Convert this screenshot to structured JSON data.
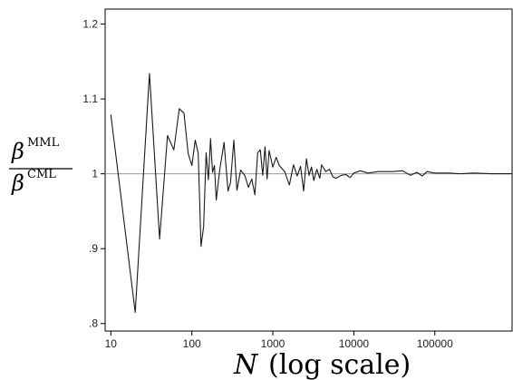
{
  "chart_data": {
    "type": "line",
    "title": "",
    "xlabel": {
      "var": "N",
      "suffix": "(log scale)"
    },
    "ylabel": {
      "numerator": {
        "base": "β",
        "sup": "MML"
      },
      "denominator": {
        "base": "β",
        "sup": "CML"
      }
    },
    "xscale": "log",
    "xlim": [
      8.5,
      900000
    ],
    "ylim": [
      0.79,
      1.22
    ],
    "x_ticks": [
      10,
      100,
      1000,
      10000,
      100000
    ],
    "x_tick_labels": [
      "10",
      "100",
      "1000",
      "10000",
      "100000"
    ],
    "y_ticks": [
      0.8,
      0.9,
      1.0,
      1.1,
      1.2
    ],
    "y_tick_labels": [
      ".8",
      ".9",
      "1",
      "1.1",
      "1.2"
    ],
    "reference_line_y": 1.0,
    "grid": false,
    "legend": "none",
    "line_color": "#1a1a1a",
    "reference_color": "#9a9a9a",
    "series": [
      {
        "points": [
          [
            10,
            1.079
          ],
          [
            20,
            0.815
          ],
          [
            30,
            1.134
          ],
          [
            40,
            0.913
          ],
          [
            50,
            1.051
          ],
          [
            60,
            1.032
          ],
          [
            70,
            1.087
          ],
          [
            80,
            1.081
          ],
          [
            90,
            1.027
          ],
          [
            100,
            1.011
          ],
          [
            110,
            1.045
          ],
          [
            120,
            1.027
          ],
          [
            130,
            0.903
          ],
          [
            140,
            0.93
          ],
          [
            150,
            1.028
          ],
          [
            160,
            0.992
          ],
          [
            170,
            1.047
          ],
          [
            180,
            1.002
          ],
          [
            190,
            1.011
          ],
          [
            200,
            0.965
          ],
          [
            220,
            1.004
          ],
          [
            250,
            1.042
          ],
          [
            280,
            0.977
          ],
          [
            300,
            0.988
          ],
          [
            330,
            1.045
          ],
          [
            360,
            0.978
          ],
          [
            400,
            1.005
          ],
          [
            450,
            0.998
          ],
          [
            500,
            0.982
          ],
          [
            550,
            0.993
          ],
          [
            600,
            0.972
          ],
          [
            650,
            1.028
          ],
          [
            700,
            1.032
          ],
          [
            750,
            0.998
          ],
          [
            800,
            1.036
          ],
          [
            850,
            0.993
          ],
          [
            900,
            1.031
          ],
          [
            1000,
            1.009
          ],
          [
            1100,
            1.022
          ],
          [
            1200,
            1.011
          ],
          [
            1400,
            1.003
          ],
          [
            1600,
            0.985
          ],
          [
            1800,
            1.012
          ],
          [
            2000,
            0.997
          ],
          [
            2200,
            1.01
          ],
          [
            2400,
            0.977
          ],
          [
            2600,
            1.02
          ],
          [
            2800,
            0.998
          ],
          [
            3000,
            1.009
          ],
          [
            3200,
            0.991
          ],
          [
            3500,
            1.006
          ],
          [
            3800,
            0.994
          ],
          [
            4000,
            1.012
          ],
          [
            4500,
            1.003
          ],
          [
            5000,
            1.006
          ],
          [
            5500,
            0.996
          ],
          [
            6000,
            0.994
          ],
          [
            7000,
            0.998
          ],
          [
            8000,
            0.999
          ],
          [
            9000,
            0.995
          ],
          [
            10000,
            1.001
          ],
          [
            12000,
            1.004
          ],
          [
            15000,
            1.001
          ],
          [
            20000,
            1.003
          ],
          [
            30000,
            1.003
          ],
          [
            40000,
            1.004
          ],
          [
            50000,
            0.998
          ],
          [
            60000,
            1.002
          ],
          [
            70000,
            0.997
          ],
          [
            80000,
            1.003
          ],
          [
            100000,
            1.001
          ],
          [
            150000,
            1.001
          ],
          [
            200000,
            1.0
          ],
          [
            300000,
            1.001
          ],
          [
            500000,
            1.0
          ],
          [
            700000,
            1.0
          ],
          [
            900000,
            1.0
          ]
        ]
      }
    ]
  }
}
